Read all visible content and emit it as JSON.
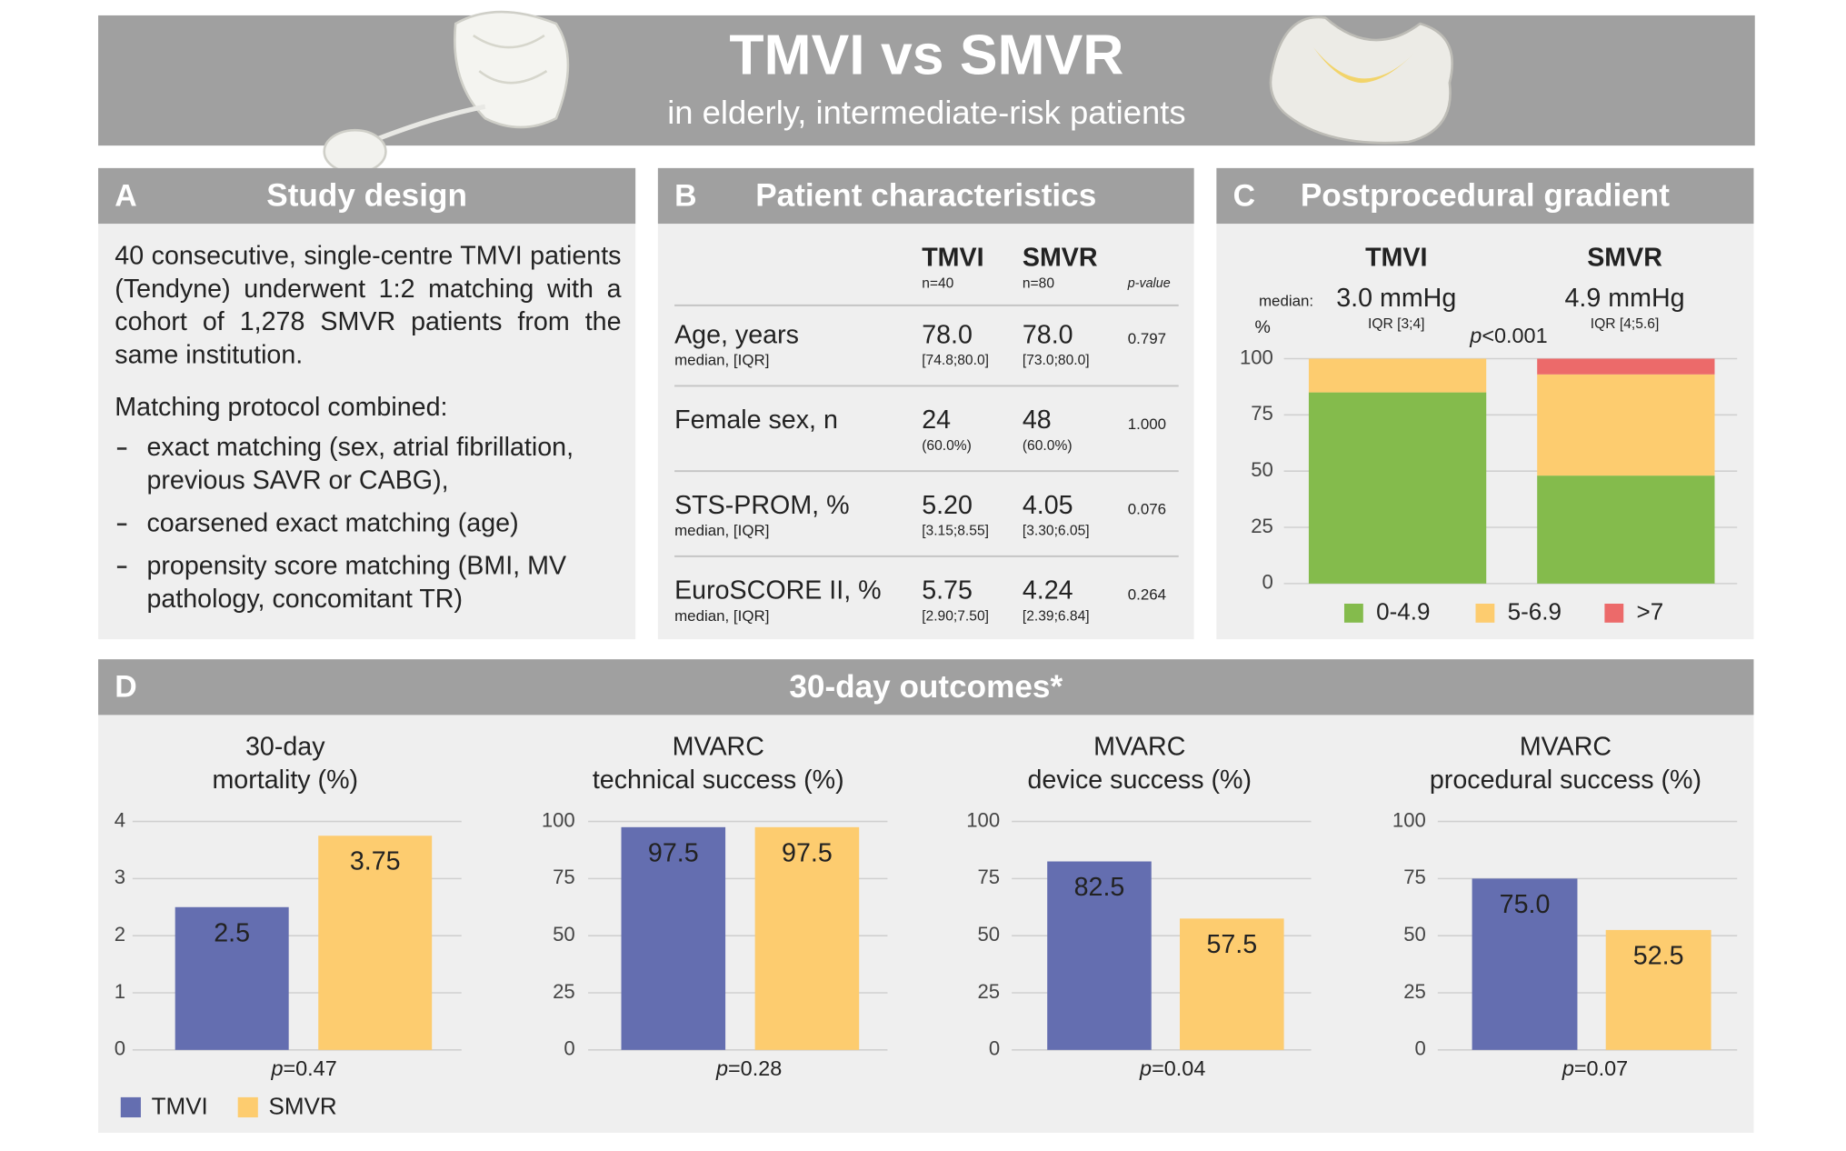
{
  "header": {
    "title": "TMVI vs SMVR",
    "subtitle": "in elderly, intermediate-risk patients"
  },
  "panels": [
    {
      "letter": "A",
      "title": "Study design"
    },
    {
      "letter": "B",
      "title": "Patient characteristics"
    },
    {
      "letter": "C",
      "title": "Postprocedural gradient"
    },
    {
      "letter": "D",
      "title": "30-day outcomes*"
    }
  ],
  "study_design": {
    "intro": "40 consecutive, single-centre TMVI patients (Tendyne) underwent 1:2 matching with a cohort of 1,278 SMVR patients from the same institution.",
    "protocol_heading": "Matching protocol combined:",
    "items": [
      "exact matching (sex, atrial fibrillation, previous SAVR or CABG),",
      "coarsened exact matching (age)",
      "propensity score matching (BMI, MV pathology, concomitant TR)"
    ]
  },
  "patient_characteristics": {
    "columns": [
      {
        "name": "TMVI",
        "n": "n=40"
      },
      {
        "name": "SMVR",
        "n": "n=80"
      }
    ],
    "pvalue_header": "p-value",
    "rows": [
      {
        "label": "Age, years",
        "sublabel": "median, [IQR]",
        "tmvi": "78.0",
        "tmvi_detail": "[74.8;80.0]",
        "smvr": "78.0",
        "smvr_detail": "[73.0;80.0]",
        "p": "0.797"
      },
      {
        "label": "Female sex, n",
        "tmvi": "24",
        "tmvi_detail": "(60.0%)",
        "smvr": "48",
        "smvr_detail": "(60.0%)",
        "p": "1.000"
      },
      {
        "label": "STS-PROM, %",
        "sublabel": "median, [IQR]",
        "tmvi": "5.20",
        "tmvi_detail": "[3.15;8.55]",
        "smvr": "4.05",
        "smvr_detail": "[3.30;6.05]",
        "p": "0.076"
      },
      {
        "label": "EuroSCORE II, %",
        "sublabel": "median,  [IQR]",
        "tmvi": "5.75",
        "tmvi_detail": "[2.90;7.50]",
        "smvr": "4.24",
        "smvr_detail": "[2.39;6.84]",
        "p": "0.264"
      }
    ]
  },
  "outcomes_legend": [
    {
      "name": "TMVI",
      "color": "#646eb0"
    },
    {
      "name": "SMVR",
      "color": "#fdcc6f"
    }
  ],
  "chart_data": [
    {
      "type": "stacked_bar",
      "categories": [
        "TMVI",
        "SMVR"
      ],
      "median_label": "median:",
      "medians": [
        "3.0 mmHg",
        "4.9 mmHg"
      ],
      "iqr": [
        "IQR [3;4]",
        "IQR [4;5.6]"
      ],
      "ylabel": "%",
      "annotation": "p<0.001",
      "series": [
        {
          "name": "0-4.9",
          "color": "#84bb4c",
          "values": [
            85,
            48
          ]
        },
        {
          "name": "5-6.9",
          "color": "#fdcc6f",
          "values": [
            15,
            45
          ]
        },
        {
          "name": ">7",
          "color": "#ec6a6a",
          "values": [
            0,
            7
          ]
        }
      ],
      "ylim": [
        0,
        100
      ],
      "yticks": [
        0,
        25,
        50,
        75,
        100
      ],
      "grid": true
    },
    {
      "type": "bar",
      "title": [
        "30-day",
        "mortality (%)"
      ],
      "values": [
        2.5,
        3.75
      ],
      "annotation": "p=0.47",
      "ylim": [
        0,
        4
      ],
      "yticks": [
        0,
        1,
        2,
        3,
        4
      ],
      "grid": true
    },
    {
      "type": "bar",
      "title": [
        "MVARC",
        "technical success (%)"
      ],
      "values": [
        97.5,
        97.5
      ],
      "annotation": "p=0.28",
      "ylim": [
        0,
        100
      ],
      "yticks": [
        0,
        25,
        50,
        75,
        100
      ],
      "grid": true
    },
    {
      "type": "bar",
      "title": [
        "MVARC",
        "device success (%)"
      ],
      "values": [
        82.5,
        57.5
      ],
      "annotation": "p=0.04",
      "ylim": [
        0,
        100
      ],
      "yticks": [
        0,
        25,
        50,
        75,
        100
      ],
      "grid": true
    },
    {
      "type": "bar",
      "title": [
        "MVARC",
        "procedural success (%)"
      ],
      "values": [
        75,
        52.5
      ],
      "value_labels": [
        "75.0",
        "52.5"
      ],
      "annotation": "p=0.07",
      "ylim": [
        0,
        100
      ],
      "yticks": [
        0,
        25,
        50,
        75,
        100
      ],
      "grid": true
    }
  ]
}
